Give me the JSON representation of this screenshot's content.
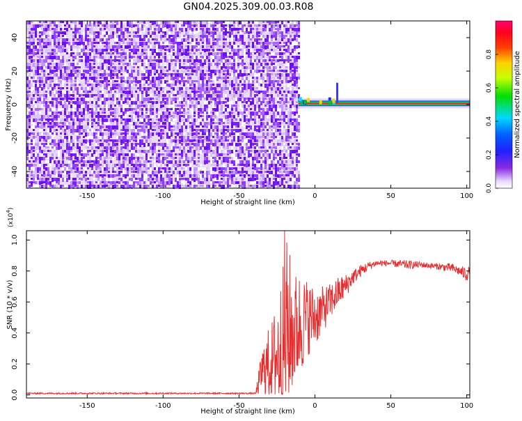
{
  "title": "GN04.2025.309.00.03.R08",
  "colors": {
    "snr_line": "#e62e2e",
    "noise_purple": "#7a1fff",
    "noise_light": "#d9c4ff",
    "axis": "#000000"
  },
  "chart_data": [
    {
      "type": "heatmap",
      "xlabel": "Height of straight line (km)",
      "ylabel": "Frequency (Hz)",
      "xlim": [
        -190,
        102
      ],
      "ylim": [
        -50,
        50
      ],
      "x_ticks": [
        -150,
        -100,
        -50,
        0,
        50,
        100
      ],
      "y_ticks": [
        -40,
        -20,
        0,
        20,
        40
      ],
      "grid": false,
      "colorbar": {
        "label": "Normalized spectral amplitude",
        "range": [
          0.0,
          1.0
        ],
        "ticks": [
          0.0,
          0.2,
          0.4,
          0.6,
          0.8
        ],
        "colormap": "rainbow (white-purple-blue-cyan-green-yellow-red-magenta)"
      },
      "regions": [
        {
          "x_range": [
            -190,
            -11
          ],
          "y_range": [
            -50,
            50
          ],
          "description": "broadband noise",
          "amplitude_range": [
            0.0,
            0.2
          ]
        },
        {
          "x_range": [
            -11,
            102
          ],
          "frequency_hz": 0.7,
          "amplitude_range": [
            0.5,
            0.9
          ]
        }
      ]
    },
    {
      "type": "line",
      "xlabel": "Height of straight line (km)",
      "ylabel": "SNR (10 * v/v)",
      "y_multiplier": "(x10^4)",
      "xlim": [
        -190,
        102
      ],
      "ylim": [
        -0.02,
        1.06
      ],
      "x_ticks": [
        -150,
        -100,
        -50,
        0,
        50,
        100
      ],
      "y_ticks": [
        0.0,
        0.2,
        0.4,
        0.6,
        0.8,
        1.0
      ],
      "grid": false,
      "series": [
        {
          "color": "#e62e2e",
          "x": [
            -190,
            -170,
            -150,
            -130,
            -110,
            -90,
            -70,
            -50,
            -40,
            -39,
            -35,
            -30,
            -25,
            -20,
            -18,
            -15,
            -10,
            -5,
            0,
            5,
            10,
            15,
            20,
            25,
            30,
            35,
            40,
            50,
            60,
            70,
            80,
            90,
            95,
            100,
            102
          ],
          "y": [
            0.01,
            0.01,
            0.01,
            0.01,
            0.01,
            0.01,
            0.01,
            0.01,
            0.01,
            0.01,
            0.15,
            0.2,
            0.25,
            0.35,
            0.45,
            0.4,
            0.45,
            0.5,
            0.5,
            0.55,
            0.6,
            0.66,
            0.7,
            0.76,
            0.8,
            0.83,
            0.85,
            0.85,
            0.84,
            0.84,
            0.83,
            0.82,
            0.8,
            0.78,
            0.8
          ],
          "y_spread": [
            0.01,
            0.01,
            0.01,
            0.01,
            0.01,
            0.01,
            0.01,
            0.01,
            0.01,
            0.01,
            0.15,
            0.25,
            0.35,
            0.55,
            0.6,
            0.4,
            0.35,
            0.25,
            0.2,
            0.15,
            0.12,
            0.1,
            0.08,
            0.05,
            0.04,
            0.03,
            0.02,
            0.02,
            0.03,
            0.02,
            0.02,
            0.03,
            0.03,
            0.05,
            0.03
          ],
          "peak": {
            "x": -20,
            "y": 1.06
          }
        }
      ]
    }
  ]
}
